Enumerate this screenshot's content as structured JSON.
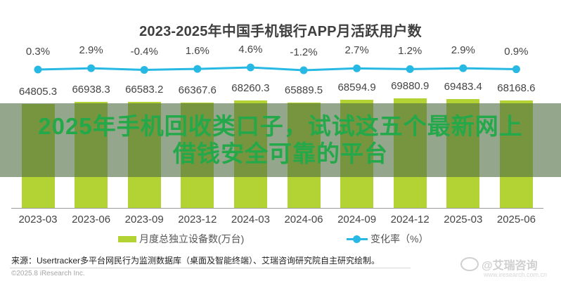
{
  "title": "2023-2025年中国手机银行APP月活跃用户数",
  "chart_data": {
    "type": "bar",
    "title": "2023-2025年中国手机银行APP月活跃用户数",
    "categories": [
      "2023-03",
      "2023-06",
      "2023-09",
      "2023-12",
      "2024-03",
      "2024-06",
      "2024-09",
      "2024-12",
      "2025-03",
      "2025-06"
    ],
    "series": [
      {
        "name": "月度总独立设备数(万台)",
        "type": "bar",
        "color": "#b3d233",
        "values": [
          64805.3,
          66938.3,
          66583.2,
          66367.6,
          68260.3,
          65889.5,
          68594.9,
          69880.9,
          69483.4,
          68168.6
        ],
        "labels": [
          "64805.3",
          "66938.3",
          "66583.2",
          "66367.6",
          "68260.3",
          "65889.5",
          "68594.9",
          "69880.9",
          "69483.4",
          "68168.6"
        ]
      },
      {
        "name": "变化率（%）",
        "type": "line",
        "color": "#27b9e4",
        "values": [
          0.3,
          2.9,
          -0.4,
          1.6,
          4.6,
          -1.2,
          2.7,
          1.2,
          2.9,
          0.9
        ],
        "labels": [
          "0.3%",
          "2.9%",
          "-0.4%",
          "1.6%",
          "4.6%",
          "-1.2%",
          "2.7%",
          "1.2%",
          "2.9%",
          "0.9%"
        ]
      }
    ],
    "xlabel": "",
    "ylabel": "",
    "grid": false,
    "legend_position": "bottom"
  },
  "legend": {
    "bar_label": "月度总独立设备数(万台)",
    "line_label": "变化率（%）"
  },
  "source": "来源：Usertracker多平台网民行为监测数据库（桌面及智能终端）、艾瑞咨询研究院自主研究绘制。",
  "copyright": "©2025.8 iResearch Inc.",
  "watermark": {
    "text": "@艾瑞咨询",
    "url": "www.iresearch.com.cn"
  },
  "overlay": {
    "line1": "2025年手机回收类口子，试试这五个最新网上",
    "line2": "借钱安全可靠的平台"
  }
}
